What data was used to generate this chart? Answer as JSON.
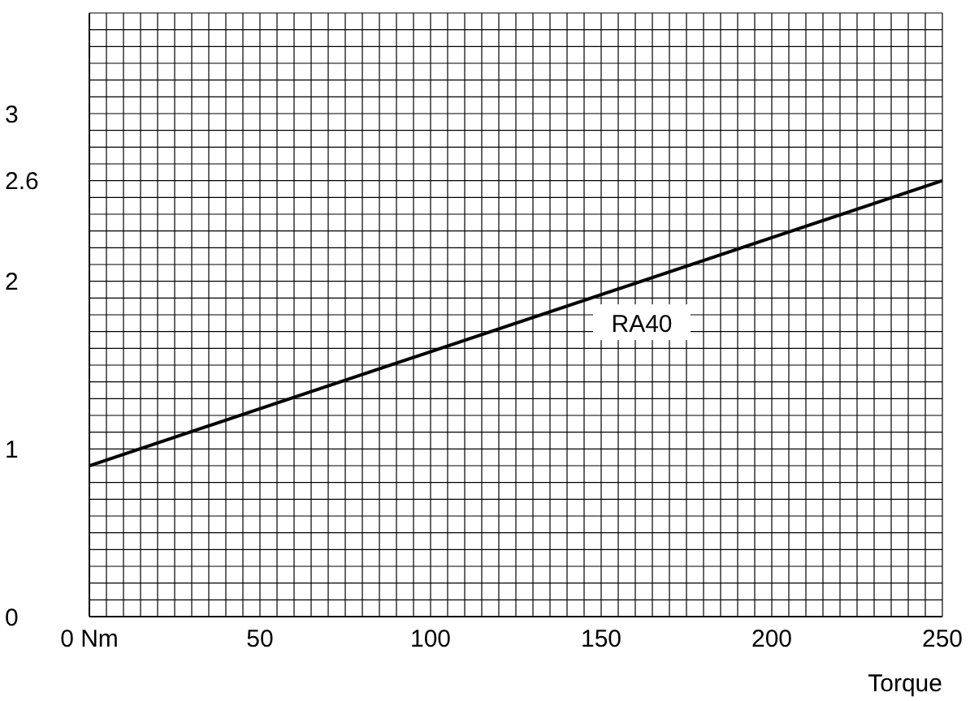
{
  "chart_data": {
    "type": "line",
    "xlabel": "Torque",
    "x": [
      0,
      250
    ],
    "series": [
      {
        "name": "RA40",
        "color": "#000000",
        "values": [
          0.9,
          2.6
        ]
      }
    ],
    "xlim": [
      0,
      250
    ],
    "xticks": [
      {
        "value": 0,
        "label": "0 Nm"
      },
      {
        "value": 5,
        "label": null
      },
      {
        "value": 10,
        "label": null
      },
      {
        "value": 15,
        "label": null
      },
      {
        "value": 20,
        "label": null
      },
      {
        "value": 25,
        "label": null
      },
      {
        "value": 30,
        "label": null
      },
      {
        "value": 35,
        "label": null
      },
      {
        "value": 40,
        "label": null
      },
      {
        "value": 45,
        "label": null
      },
      50,
      {
        "value": 55,
        "label": null
      },
      {
        "value": 60,
        "label": null
      },
      {
        "value": 65,
        "label": null
      },
      {
        "value": 70,
        "label": null
      },
      {
        "value": 75,
        "label": null
      },
      {
        "value": 80,
        "label": null
      },
      {
        "value": 85,
        "label": null
      },
      {
        "value": 90,
        "label": null
      },
      {
        "value": 95,
        "label": null
      },
      100,
      {
        "value": 105,
        "label": null
      },
      {
        "value": 110,
        "label": null
      },
      {
        "value": 115,
        "label": null
      },
      {
        "value": 120,
        "label": null
      },
      {
        "value": 125,
        "label": null
      },
      {
        "value": 130,
        "label": null
      },
      {
        "value": 135,
        "label": null
      },
      {
        "value": 140,
        "label": null
      },
      {
        "value": 145,
        "label": null
      },
      150,
      {
        "value": 155,
        "label": null
      },
      {
        "value": 160,
        "label": null
      },
      {
        "value": 165,
        "label": null
      },
      {
        "value": 170,
        "label": null
      },
      {
        "value": 175,
        "label": null
      },
      {
        "value": 180,
        "label": null
      },
      {
        "value": 185,
        "label": null
      },
      {
        "value": 190,
        "label": null
      },
      {
        "value": 195,
        "label": null
      },
      200,
      {
        "value": 205,
        "label": null
      },
      {
        "value": 210,
        "label": null
      },
      {
        "value": 215,
        "label": null
      },
      {
        "value": 220,
        "label": null
      },
      {
        "value": 225,
        "label": null
      },
      {
        "value": 230,
        "label": null
      },
      {
        "value": 235,
        "label": null
      },
      {
        "value": 240,
        "label": null
      },
      {
        "value": 245,
        "label": null
      },
      250
    ],
    "ylim": [
      0,
      3.6
    ],
    "yticks": [
      0,
      {
        "value": 0.1,
        "label": null
      },
      {
        "value": 0.2,
        "label": null
      },
      {
        "value": 0.3,
        "label": null
      },
      {
        "value": 0.4,
        "label": null
      },
      {
        "value": 0.5,
        "label": null
      },
      {
        "value": 0.6,
        "label": null
      },
      {
        "value": 0.7,
        "label": null
      },
      {
        "value": 0.8,
        "label": null
      },
      {
        "value": 0.9,
        "label": null
      },
      1,
      {
        "value": 1.1,
        "label": null
      },
      {
        "value": 1.2,
        "label": null
      },
      {
        "value": 1.3,
        "label": null
      },
      {
        "value": 1.4,
        "label": null
      },
      {
        "value": 1.5,
        "label": null
      },
      {
        "value": 1.6,
        "label": null
      },
      {
        "value": 1.7,
        "label": null
      },
      {
        "value": 1.8,
        "label": null
      },
      {
        "value": 1.9,
        "label": null
      },
      2,
      {
        "value": 2.1,
        "label": null
      },
      {
        "value": 2.2,
        "label": null
      },
      {
        "value": 2.3,
        "label": null
      },
      {
        "value": 2.4,
        "label": null
      },
      {
        "value": 2.5,
        "label": null
      },
      2.6,
      {
        "value": 2.7,
        "label": null
      },
      {
        "value": 2.8,
        "label": null
      },
      {
        "value": 2.9,
        "label": null
      },
      3,
      {
        "value": 3.1,
        "label": null
      },
      {
        "value": 3.2,
        "label": null
      },
      {
        "value": 3.3,
        "label": null
      },
      {
        "value": 3.4,
        "label": null
      },
      {
        "value": 3.5,
        "label": null
      },
      {
        "value": 3.6,
        "label": null
      }
    ],
    "grid": true,
    "legend": false,
    "marker": "none",
    "line_style": "solid"
  }
}
